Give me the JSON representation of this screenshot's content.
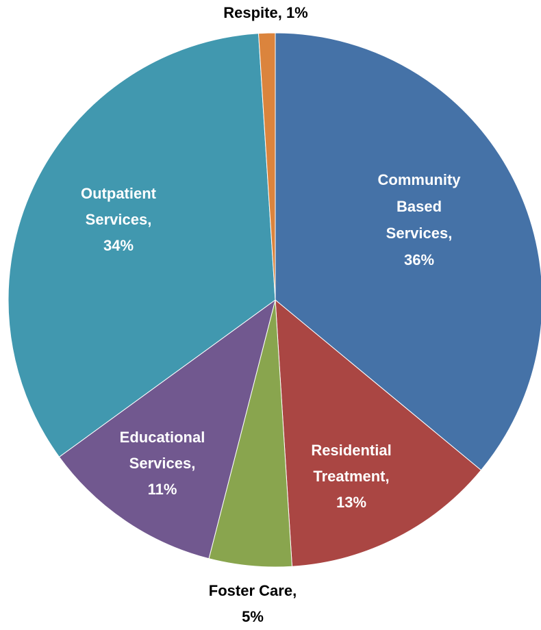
{
  "chart_data": {
    "type": "pie",
    "title": "",
    "slices": [
      {
        "label": "Community Based Services",
        "value": 36,
        "color": "#4572A7",
        "text_color": "#FFFFFF",
        "label_lines": [
          "Community",
          "Based",
          "Services,",
          "36%"
        ]
      },
      {
        "label": "Residential Treatment",
        "value": 13,
        "color": "#AA4643",
        "text_color": "#FFFFFF",
        "label_lines": [
          "Residential",
          "Treatment,",
          "13%"
        ]
      },
      {
        "label": "Foster Care",
        "value": 5,
        "color": "#89A54E",
        "text_color": "#000000",
        "label_lines": [
          "Foster Care,",
          "5%"
        ]
      },
      {
        "label": "Educational Services",
        "value": 11,
        "color": "#71588F",
        "text_color": "#FFFFFF",
        "label_lines": [
          "Educational",
          "Services,",
          "11%"
        ]
      },
      {
        "label": "Outpatient Services",
        "value": 34,
        "color": "#4198AF",
        "text_color": "#FFFFFF",
        "label_lines": [
          "Outpatient",
          "Services,",
          "34%"
        ]
      },
      {
        "label": "Respite",
        "value": 1,
        "color": "#DB843D",
        "text_color": "#000000",
        "label_lines": [
          "Respite, 1%"
        ]
      }
    ]
  }
}
